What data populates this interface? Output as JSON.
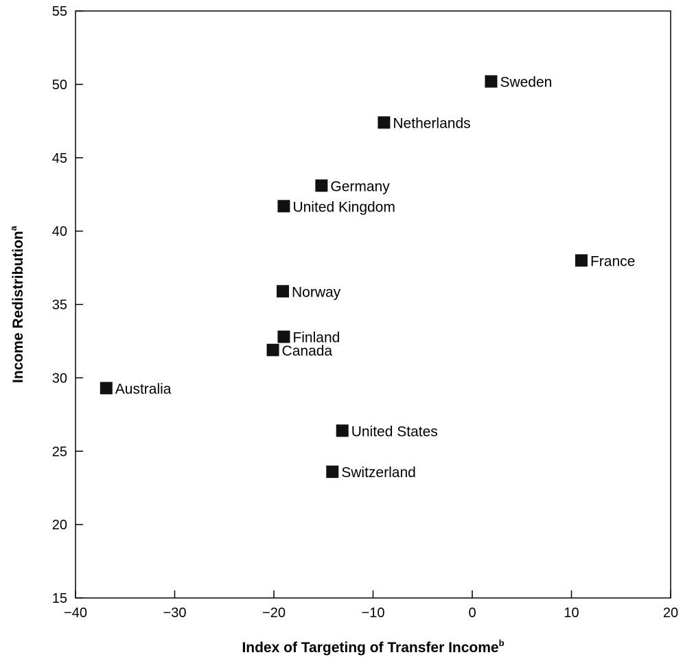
{
  "chart_data": {
    "type": "scatter",
    "title": "",
    "xlabel": "Index of Targeting of Transfer Income",
    "xlabel_superscript": "b",
    "ylabel": "Income Redistribution",
    "ylabel_superscript": "a",
    "xlim": [
      -40,
      20
    ],
    "ylim": [
      15,
      55
    ],
    "x_ticks": [
      -40,
      -30,
      -20,
      -10,
      0,
      10,
      20
    ],
    "x_tick_labels": [
      "−40",
      "−30",
      "−20",
      "−10",
      "0",
      "10",
      "20"
    ],
    "y_ticks": [
      15,
      20,
      25,
      30,
      35,
      40,
      45,
      50,
      55
    ],
    "y_tick_labels": [
      "15",
      "20",
      "25",
      "30",
      "35",
      "40",
      "45",
      "50",
      "55"
    ],
    "grid": false,
    "legend": "none",
    "marker_color": "#111111",
    "points": [
      {
        "label": "Sweden",
        "x": 1.9,
        "y": 50.2
      },
      {
        "label": "Netherlands",
        "x": -8.9,
        "y": 47.4
      },
      {
        "label": "Germany",
        "x": -15.2,
        "y": 43.1
      },
      {
        "label": "United Kingdom",
        "x": -19.0,
        "y": 41.7
      },
      {
        "label": "France",
        "x": 11.0,
        "y": 38.0
      },
      {
        "label": "Norway",
        "x": -19.1,
        "y": 35.9
      },
      {
        "label": "Finland",
        "x": -19.0,
        "y": 32.8
      },
      {
        "label": "Canada",
        "x": -20.1,
        "y": 31.9
      },
      {
        "label": "Australia",
        "x": -36.9,
        "y": 29.3
      },
      {
        "label": "United States",
        "x": -13.1,
        "y": 26.4
      },
      {
        "label": "Switzerland",
        "x": -14.1,
        "y": 23.6
      }
    ]
  }
}
